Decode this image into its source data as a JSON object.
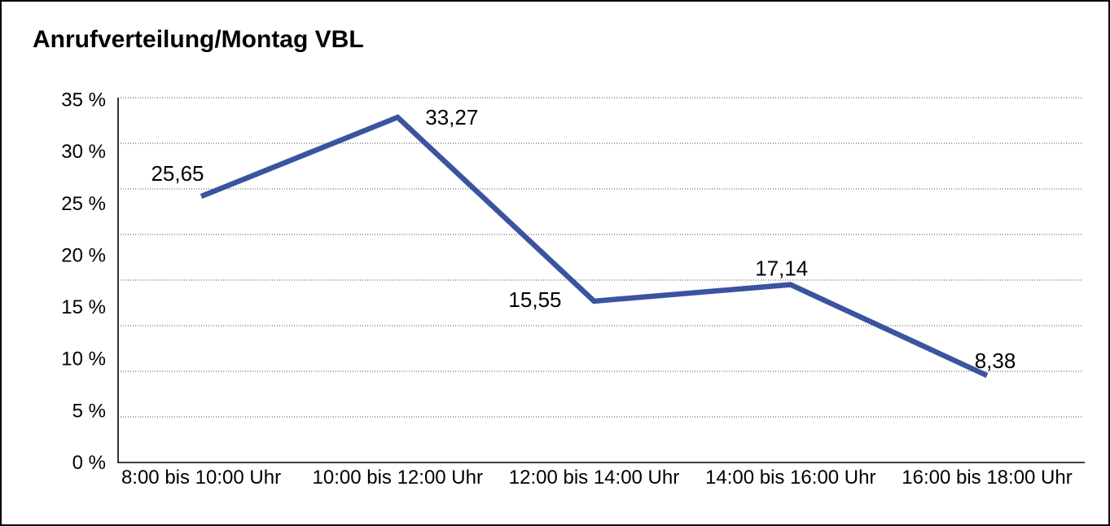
{
  "page": {
    "title": "Anrufverteilung/Montag VBL"
  },
  "chart_data": {
    "type": "line",
    "title": "Anrufverteilung/Montag VBL",
    "categories": [
      "8:00 bis 10:00 Uhr",
      "10:00 bis 12:00 Uhr",
      "12:00 bis 14:00 Uhr",
      "14:00 bis 16:00 Uhr",
      "16:00 bis 18:00 Uhr"
    ],
    "values": [
      25.65,
      33.27,
      15.55,
      17.14,
      8.38
    ],
    "point_labels": [
      "25,65",
      "33,27",
      "15,55",
      "17,14",
      "8,38"
    ],
    "y_tick_labels": [
      "35 %",
      "30 %",
      "25 %",
      "20 %",
      "15 %",
      "10 %",
      "5 %",
      "0 %"
    ],
    "y_tick_values": [
      35,
      30,
      25,
      20,
      15,
      10,
      5,
      0
    ],
    "ylim": [
      0,
      35
    ],
    "xlabel": "",
    "ylabel": "",
    "grid": "horizontal-dotted",
    "gridline_count": 9,
    "legend_position": "none",
    "colors": {
      "line": "#3B549F",
      "grid": "#4a4a4a",
      "axis": "#000000",
      "text": "#000000",
      "background": "#FFFFFF",
      "frame_border": "#000000"
    }
  }
}
